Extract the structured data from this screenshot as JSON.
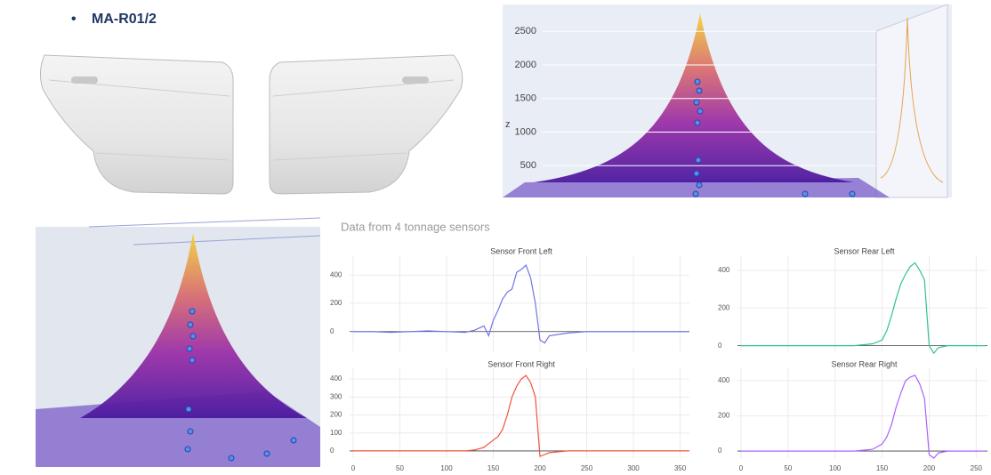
{
  "bullet": "MA-R01/2",
  "subtitle": "Data from 4 tonnage sensors",
  "surface_plot": {
    "zlabel": "z",
    "zlim": [
      0,
      2900
    ],
    "zticks": [
      500,
      1000,
      1500,
      2000,
      2500
    ]
  },
  "chart_data": [
    {
      "type": "line",
      "title": "Sensor Front Left",
      "x": [
        0,
        20,
        40,
        60,
        80,
        100,
        120,
        130,
        140,
        145,
        150,
        155,
        160,
        165,
        170,
        175,
        180,
        185,
        190,
        195,
        200,
        205,
        210,
        220,
        230,
        250,
        280,
        300,
        330,
        360
      ],
      "series": [
        {
          "color": "#6f74e6",
          "values": [
            0,
            0,
            -5,
            0,
            5,
            0,
            -5,
            10,
            40,
            -30,
            80,
            150,
            230,
            280,
            300,
            420,
            440,
            470,
            380,
            200,
            -60,
            -80,
            -30,
            -20,
            -10,
            0,
            0,
            0,
            0,
            0
          ]
        }
      ],
      "xlim": [
        0,
        360
      ],
      "ylim": [
        -140,
        540
      ],
      "yticks": [
        0,
        200,
        400
      ],
      "grid": true
    },
    {
      "type": "line",
      "title": "Sensor Front Right",
      "x": [
        0,
        20,
        40,
        60,
        80,
        100,
        120,
        130,
        140,
        145,
        150,
        155,
        160,
        165,
        170,
        175,
        180,
        185,
        190,
        195,
        200,
        205,
        210,
        220,
        230,
        250,
        280,
        300,
        330,
        360
      ],
      "series": [
        {
          "color": "#ef553b",
          "values": [
            0,
            0,
            0,
            0,
            0,
            0,
            0,
            5,
            20,
            40,
            60,
            80,
            120,
            200,
            300,
            360,
            400,
            420,
            380,
            300,
            -30,
            -20,
            -10,
            -5,
            0,
            0,
            0,
            0,
            0,
            0
          ]
        }
      ],
      "xlim": [
        0,
        360
      ],
      "xticks": [
        0,
        50,
        100,
        150,
        200,
        250,
        300,
        350
      ],
      "ylim": [
        -40,
        460
      ],
      "yticks": [
        0,
        100,
        200,
        300,
        400
      ],
      "grid": true
    },
    {
      "type": "line",
      "title": "Sensor Rear Left",
      "x": [
        0,
        20,
        40,
        60,
        80,
        100,
        120,
        130,
        140,
        150,
        155,
        160,
        165,
        170,
        175,
        180,
        185,
        190,
        195,
        200,
        205,
        210,
        220,
        240,
        260
      ],
      "series": [
        {
          "color": "#2ec39a",
          "values": [
            0,
            0,
            0,
            0,
            0,
            0,
            0,
            5,
            10,
            30,
            80,
            160,
            250,
            330,
            380,
            420,
            440,
            400,
            350,
            0,
            -40,
            -10,
            0,
            0,
            0
          ]
        }
      ],
      "xlim": [
        0,
        262
      ],
      "ylim": [
        -30,
        480
      ],
      "yticks": [
        0,
        200,
        400
      ],
      "grid": true
    },
    {
      "type": "line",
      "title": "Sensor Rear Right",
      "x": [
        0,
        20,
        40,
        60,
        80,
        100,
        120,
        130,
        140,
        150,
        155,
        160,
        165,
        170,
        175,
        180,
        185,
        190,
        195,
        200,
        205,
        210,
        220,
        240,
        260
      ],
      "series": [
        {
          "color": "#ab63fa",
          "values": [
            0,
            0,
            0,
            0,
            0,
            0,
            0,
            5,
            10,
            40,
            80,
            150,
            250,
            330,
            400,
            420,
            430,
            380,
            300,
            -20,
            -40,
            -10,
            0,
            0,
            0
          ]
        }
      ],
      "xlim": [
        0,
        262
      ],
      "xticks": [
        0,
        50,
        100,
        150,
        200,
        250
      ],
      "ylim": [
        -40,
        470
      ],
      "yticks": [
        0,
        200,
        400
      ],
      "grid": true
    }
  ]
}
